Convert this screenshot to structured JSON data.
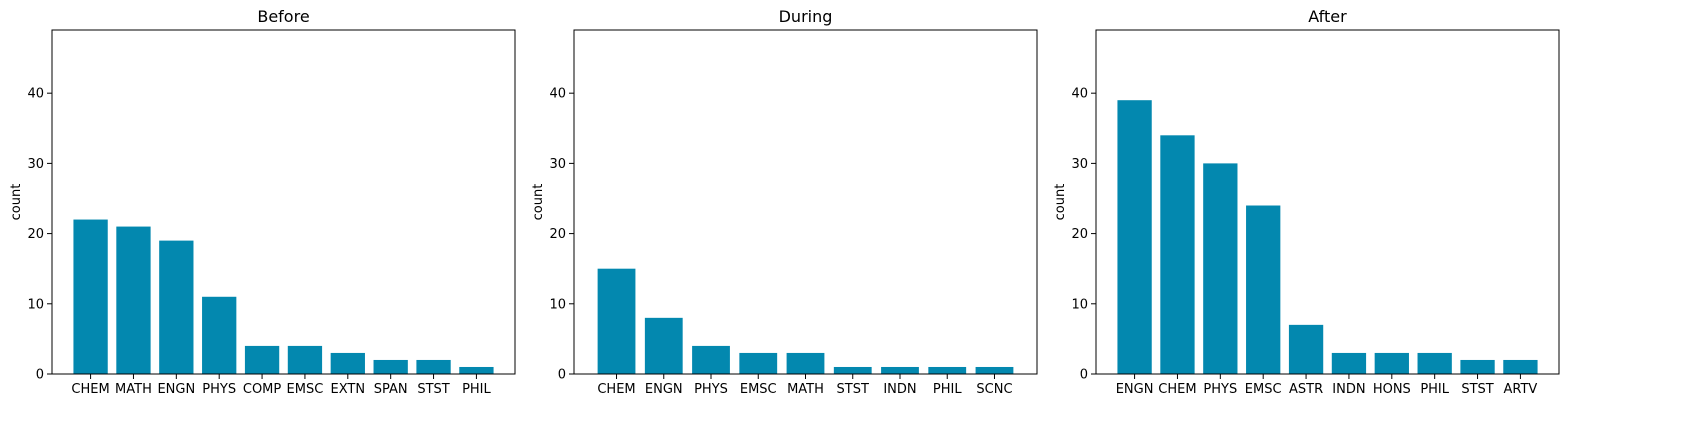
{
  "chart_data": [
    {
      "type": "bar",
      "title": "Before",
      "xlabel": "",
      "ylabel": "count",
      "ylim": [
        0,
        49
      ],
      "yticks": [
        0,
        10,
        20,
        30,
        40
      ],
      "grid": false,
      "categories": [
        "CHEM",
        "MATH",
        "ENGN",
        "PHYS",
        "COMP",
        "EMSC",
        "EXTN",
        "SPAN",
        "STST",
        "PHIL"
      ],
      "values": [
        22,
        21,
        19,
        11,
        4,
        4,
        3,
        2,
        2,
        1
      ],
      "color": "#0388AF"
    },
    {
      "type": "bar",
      "title": "During",
      "xlabel": "",
      "ylabel": "count",
      "ylim": [
        0,
        49
      ],
      "yticks": [
        0,
        10,
        20,
        30,
        40
      ],
      "grid": false,
      "categories": [
        "CHEM",
        "ENGN",
        "PHYS",
        "EMSC",
        "MATH",
        "STST",
        "INDN",
        "PHIL",
        "SCNC"
      ],
      "values": [
        15,
        8,
        4,
        3,
        3,
        1,
        1,
        1,
        1
      ],
      "color": "#0388AF"
    },
    {
      "type": "bar",
      "title": "After",
      "xlabel": "",
      "ylabel": "count",
      "ylim": [
        0,
        49
      ],
      "yticks": [
        0,
        10,
        20,
        30,
        40
      ],
      "grid": false,
      "categories": [
        "ENGN",
        "CHEM",
        "PHYS",
        "EMSC",
        "ASTR",
        "INDN",
        "HONS",
        "PHIL",
        "STST",
        "ARTV"
      ],
      "values": [
        39,
        34,
        30,
        24,
        7,
        3,
        3,
        3,
        2,
        2
      ],
      "color": "#0388AF"
    }
  ]
}
